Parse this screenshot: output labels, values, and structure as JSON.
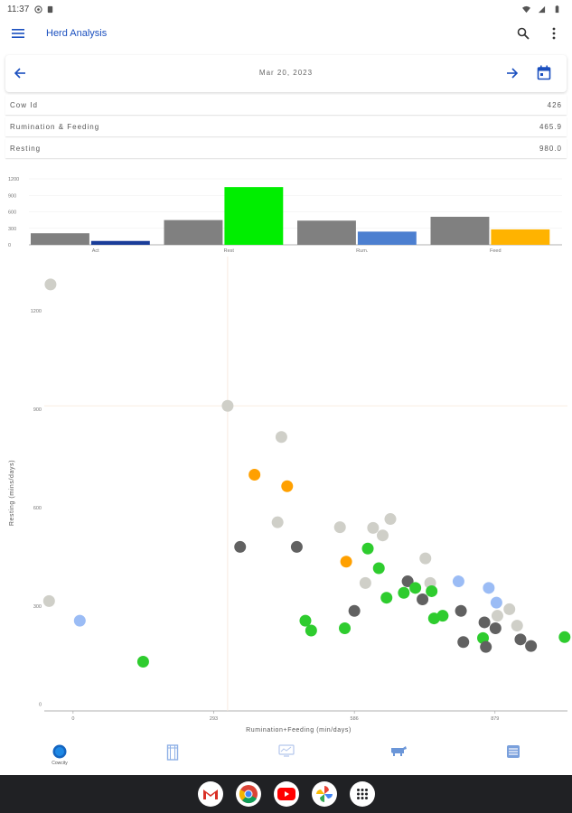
{
  "status_bar": {
    "time": "11:37"
  },
  "app_bar": {
    "title": "Herd Analysis"
  },
  "date_nav": {
    "date": "Mar 20, 2023"
  },
  "info_rows": [
    {
      "label": "Cow Id",
      "value": "426"
    },
    {
      "label": "Rumination & Feeding",
      "value": "465.9"
    },
    {
      "label": "Resting",
      "value": "980.0"
    }
  ],
  "bar_chart": {
    "type": "bar",
    "categories": [
      "Act",
      "Rest",
      "Rum.",
      "Feed"
    ],
    "y_ticks": [
      "1200",
      "900",
      "600",
      "300",
      "0"
    ],
    "ylim": [
      0,
      1200
    ],
    "series": [
      {
        "values": [
          210,
          450,
          440,
          510
        ],
        "color": "#808080"
      },
      {
        "values": [
          70,
          1050,
          240,
          280
        ],
        "colors": [
          "#1a3d99",
          "#00ee00",
          "#4c7fd0",
          "#ffb300"
        ]
      }
    ]
  },
  "chart_data": {
    "type": "scatter",
    "xlabel": "Rumination+Feeding (min/days)",
    "ylabel": "Resting (mins/days)",
    "x_ticks": [
      {
        "value": 0,
        "label": "0"
      },
      {
        "value": 293,
        "label": "293"
      },
      {
        "value": 586,
        "label": "586"
      },
      {
        "value": 879,
        "label": "879"
      }
    ],
    "y_ticks": [
      {
        "value": 0,
        "label": "0"
      },
      {
        "value": 300,
        "label": "300"
      },
      {
        "value": 600,
        "label": "600"
      },
      {
        "value": 900,
        "label": "900"
      },
      {
        "value": 1200,
        "label": "1200"
      }
    ],
    "xlim": [
      -60,
      1030
    ],
    "ylim": [
      -20,
      1310
    ],
    "reference_lines": {
      "x": 322,
      "y": 910
    },
    "points": [
      {
        "x": -47,
        "y": 1280,
        "color": "#cfcfc8"
      },
      {
        "x": 322,
        "y": 910,
        "color": "#cfcfc8"
      },
      {
        "x": 434,
        "y": 815,
        "color": "#cfcfc8"
      },
      {
        "x": 378,
        "y": 700,
        "color": "#ffa000"
      },
      {
        "x": 446,
        "y": 665,
        "color": "#ffa000"
      },
      {
        "x": 426,
        "y": 555,
        "color": "#cfcfc8"
      },
      {
        "x": 556,
        "y": 540,
        "color": "#cfcfc8"
      },
      {
        "x": 625,
        "y": 538,
        "color": "#cfcfc8"
      },
      {
        "x": 645,
        "y": 515,
        "color": "#cfcfc8"
      },
      {
        "x": 661,
        "y": 565,
        "color": "#cfcfc8"
      },
      {
        "x": 348,
        "y": 480,
        "color": "#616161"
      },
      {
        "x": 466,
        "y": 480,
        "color": "#616161"
      },
      {
        "x": 614,
        "y": 475,
        "color": "#2ecc2e"
      },
      {
        "x": 569,
        "y": 435,
        "color": "#ffa000"
      },
      {
        "x": 637,
        "y": 415,
        "color": "#2ecc2e"
      },
      {
        "x": 734,
        "y": 445,
        "color": "#cfcfc8"
      },
      {
        "x": 609,
        "y": 370,
        "color": "#cfcfc8"
      },
      {
        "x": 744,
        "y": 370,
        "color": "#cfcfc8"
      },
      {
        "x": 697,
        "y": 375,
        "color": "#616161"
      },
      {
        "x": 713,
        "y": 355,
        "color": "#2ecc2e"
      },
      {
        "x": 747,
        "y": 345,
        "color": "#2ecc2e"
      },
      {
        "x": 689,
        "y": 340,
        "color": "#2ecc2e"
      },
      {
        "x": 653,
        "y": 325,
        "color": "#2ecc2e"
      },
      {
        "x": 728,
        "y": 320,
        "color": "#616161"
      },
      {
        "x": 803,
        "y": 375,
        "color": "#9bbcf5"
      },
      {
        "x": 866,
        "y": 355,
        "color": "#9bbcf5"
      },
      {
        "x": 882,
        "y": 310,
        "color": "#9bbcf5"
      },
      {
        "x": 909,
        "y": 290,
        "color": "#cfcfc8"
      },
      {
        "x": 884,
        "y": 270,
        "color": "#cfcfc8"
      },
      {
        "x": 925,
        "y": 240,
        "color": "#cfcfc8"
      },
      {
        "x": 586,
        "y": 285,
        "color": "#616161"
      },
      {
        "x": 808,
        "y": 285,
        "color": "#616161"
      },
      {
        "x": 770,
        "y": 270,
        "color": "#2ecc2e"
      },
      {
        "x": 752,
        "y": 262,
        "color": "#2ecc2e"
      },
      {
        "x": 857,
        "y": 250,
        "color": "#616161"
      },
      {
        "x": 880,
        "y": 232,
        "color": "#616161"
      },
      {
        "x": 484,
        "y": 255,
        "color": "#2ecc2e"
      },
      {
        "x": 496,
        "y": 225,
        "color": "#2ecc2e"
      },
      {
        "x": 566,
        "y": 232,
        "color": "#2ecc2e"
      },
      {
        "x": 854,
        "y": 202,
        "color": "#2ecc2e"
      },
      {
        "x": 813,
        "y": 190,
        "color": "#616161"
      },
      {
        "x": 860,
        "y": 175,
        "color": "#616161"
      },
      {
        "x": 932,
        "y": 198,
        "color": "#616161"
      },
      {
        "x": 954,
        "y": 178,
        "color": "#616161"
      },
      {
        "x": 1024,
        "y": 205,
        "color": "#2ecc2e"
      },
      {
        "x": -50,
        "y": 315,
        "color": "#cfcfc8"
      },
      {
        "x": 14,
        "y": 255,
        "color": "#9bbcf5"
      },
      {
        "x": 146,
        "y": 130,
        "color": "#2ecc2e"
      }
    ]
  },
  "bottom_nav": {
    "items": [
      {
        "label": "Cowcity"
      }
    ]
  }
}
